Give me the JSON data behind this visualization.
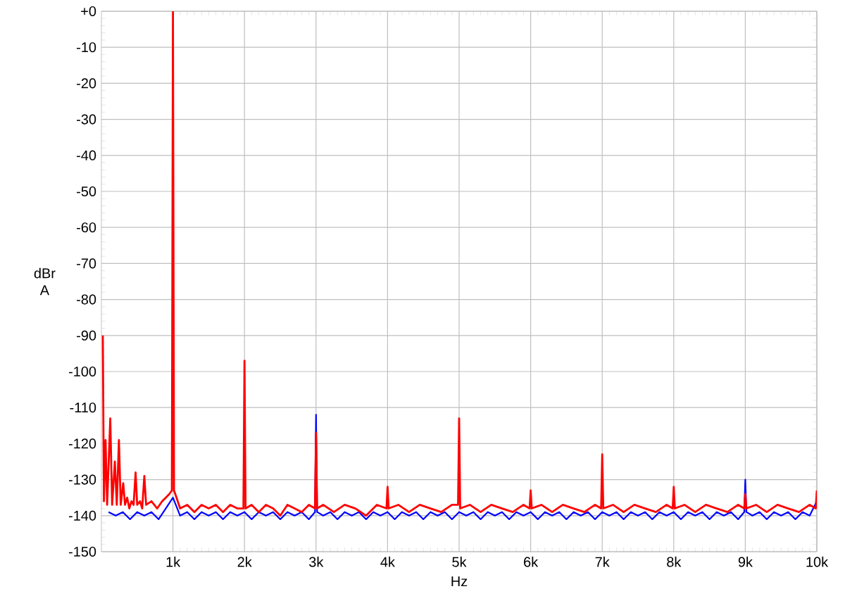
{
  "chart_data": {
    "type": "line",
    "xlabel": "Hz",
    "ylabel": "dBr A",
    "xlim": [
      0,
      10000
    ],
    "ylim": [
      -150,
      0
    ],
    "xticks": [
      {
        "value": 1000,
        "label": "1k"
      },
      {
        "value": 2000,
        "label": "2k"
      },
      {
        "value": 3000,
        "label": "3k"
      },
      {
        "value": 4000,
        "label": "4k"
      },
      {
        "value": 5000,
        "label": "5k"
      },
      {
        "value": 6000,
        "label": "6k"
      },
      {
        "value": 7000,
        "label": "7k"
      },
      {
        "value": 8000,
        "label": "8k"
      },
      {
        "value": 9000,
        "label": "9k"
      },
      {
        "value": 10000,
        "label": "10k"
      }
    ],
    "yticks": [
      {
        "value": 0,
        "label": "+0"
      },
      -10,
      -20,
      -30,
      -40,
      -50,
      -60,
      -70,
      -80,
      -90,
      -100,
      -110,
      -120,
      -130,
      -140,
      -150
    ],
    "grid": true,
    "marker": "none",
    "line_style": "solid",
    "series": [
      {
        "color": "#0000ff",
        "x": [
          100,
          200,
          300,
          400,
          500,
          600,
          700,
          800,
          900,
          1000,
          1100,
          1200,
          1300,
          1400,
          1500,
          1600,
          1700,
          1800,
          1900,
          2000,
          2100,
          2200,
          2300,
          2400,
          2500,
          2600,
          2700,
          2800,
          2900,
          2985,
          3000,
          3015,
          3100,
          3200,
          3300,
          3400,
          3500,
          3600,
          3700,
          3800,
          3900,
          4000,
          4100,
          4200,
          4300,
          4400,
          4500,
          4600,
          4700,
          4800,
          4900,
          5000,
          5100,
          5200,
          5300,
          5400,
          5500,
          5600,
          5700,
          5800,
          5900,
          6000,
          6100,
          6200,
          6300,
          6400,
          6500,
          6600,
          6700,
          6800,
          6900,
          7000,
          7100,
          7200,
          7300,
          7400,
          7500,
          7600,
          7700,
          7800,
          7900,
          8000,
          8100,
          8200,
          8300,
          8400,
          8500,
          8600,
          8700,
          8800,
          8900,
          8985,
          9000,
          9015,
          9100,
          9200,
          9300,
          9400,
          9500,
          9600,
          9700,
          9800,
          9900,
          10000
        ],
        "values": [
          -139,
          -140,
          -139,
          -141,
          -139,
          -140,
          -139,
          -141,
          -138,
          -135,
          -140,
          -139,
          -141,
          -139,
          -140,
          -139,
          -141,
          -139,
          -140,
          -139,
          -141,
          -139,
          -140,
          -139,
          -141,
          -139,
          -140,
          -139,
          -141,
          -139,
          -112,
          -139,
          -140,
          -139,
          -141,
          -139,
          -140,
          -139,
          -141,
          -139,
          -140,
          -139,
          -141,
          -139,
          -140,
          -139,
          -141,
          -139,
          -140,
          -139,
          -141,
          -139,
          -140,
          -139,
          -141,
          -139,
          -140,
          -139,
          -141,
          -139,
          -140,
          -139,
          -141,
          -139,
          -140,
          -139,
          -141,
          -139,
          -140,
          -139,
          -141,
          -139,
          -140,
          -139,
          -141,
          -139,
          -140,
          -139,
          -141,
          -139,
          -140,
          -139,
          -141,
          -139,
          -140,
          -139,
          -141,
          -139,
          -140,
          -139,
          -141,
          -139,
          -130,
          -139,
          -140,
          -139,
          -141,
          -139,
          -140,
          -139,
          -141,
          -139,
          -140,
          -136
        ]
      },
      {
        "color": "#ff0000",
        "x": [
          20,
          35,
          58,
          80,
          124,
          150,
          188,
          215,
          245,
          270,
          305,
          330,
          360,
          390,
          420,
          450,
          478,
          500,
          540,
          570,
          600,
          625,
          700,
          780,
          850,
          900,
          950,
          985,
          1000,
          1015,
          1050,
          1100,
          1200,
          1300,
          1400,
          1500,
          1600,
          1700,
          1800,
          1900,
          1985,
          2000,
          2015,
          2100,
          2200,
          2300,
          2400,
          2500,
          2600,
          2700,
          2800,
          2900,
          2985,
          3000,
          3015,
          3100,
          3250,
          3400,
          3550,
          3700,
          3850,
          3985,
          4000,
          4015,
          4150,
          4300,
          4450,
          4600,
          4750,
          4900,
          4985,
          5000,
          5015,
          5150,
          5300,
          5450,
          5600,
          5750,
          5900,
          5985,
          6000,
          6015,
          6150,
          6300,
          6450,
          6600,
          6750,
          6900,
          6985,
          7000,
          7015,
          7150,
          7300,
          7450,
          7600,
          7750,
          7900,
          7985,
          8000,
          8015,
          8150,
          8300,
          8450,
          8600,
          8750,
          8900,
          8985,
          9000,
          9015,
          9150,
          9300,
          9450,
          9600,
          9750,
          9900,
          9985,
          10000
        ],
        "values": [
          -90,
          -136,
          -119,
          -137,
          -113,
          -137,
          -125,
          -137,
          -119,
          -137,
          -131,
          -137,
          -135,
          -138,
          -136,
          -137,
          -128,
          -137,
          -136,
          -138,
          -129,
          -137,
          -136,
          -138,
          -136,
          -135,
          -134,
          -133,
          0,
          -133,
          -135,
          -138,
          -137,
          -139,
          -137,
          -138,
          -137,
          -139,
          -137,
          -138,
          -138,
          -97,
          -138,
          -137,
          -139,
          -137,
          -138,
          -140,
          -137,
          -138,
          -139,
          -137,
          -138,
          -117,
          -138,
          -137,
          -139,
          -137,
          -138,
          -140,
          -137,
          -138,
          -132,
          -138,
          -137,
          -139,
          -137,
          -138,
          -139,
          -137,
          -137,
          -113,
          -138,
          -137,
          -139,
          -137,
          -138,
          -139,
          -137,
          -138,
          -133,
          -138,
          -137,
          -139,
          -137,
          -138,
          -139,
          -137,
          -138,
          -123,
          -138,
          -137,
          -139,
          -137,
          -138,
          -139,
          -137,
          -138,
          -132,
          -138,
          -137,
          -139,
          -137,
          -138,
          -139,
          -137,
          -138,
          -134,
          -138,
          -137,
          -139,
          -137,
          -138,
          -139,
          -137,
          -138,
          -133
        ]
      }
    ]
  }
}
